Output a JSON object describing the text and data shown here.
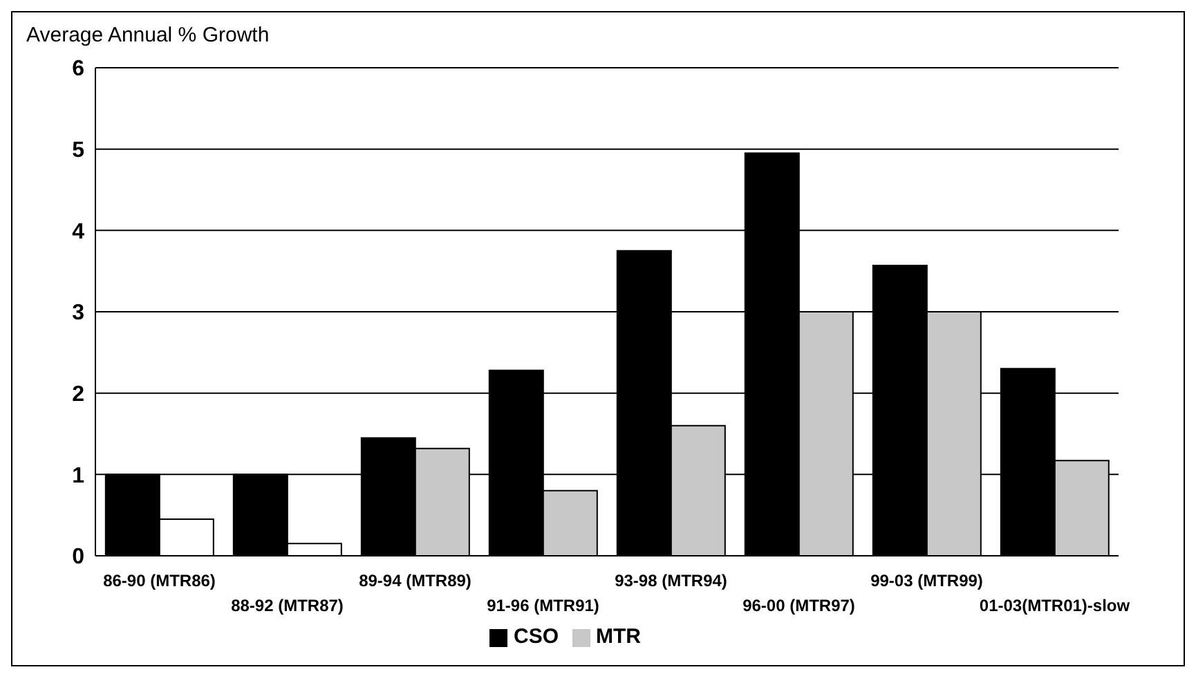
{
  "chart_data": {
    "type": "bar",
    "ylabel": "Average Annual % Growth",
    "categories": [
      "86-90 (MTR86)",
      "88-92 (MTR87)",
      "89-94 (MTR89)",
      "91-96 (MTR91)",
      "93-98 (MTR94)",
      "96-00 (MTR97)",
      "99-03 (MTR99)",
      "01-03(MTR01)-slow"
    ],
    "series": [
      {
        "name": "CSO",
        "color": "#000000",
        "values": [
          1.0,
          1.0,
          1.45,
          2.28,
          3.75,
          4.95,
          3.57,
          2.3
        ]
      },
      {
        "name": "MTR",
        "color": "#c8c8c8",
        "colors": [
          "#ffffff",
          "#ffffff",
          "#c8c8c8",
          "#c8c8c8",
          "#c8c8c8",
          "#c8c8c8",
          "#c8c8c8",
          "#c8c8c8"
        ],
        "values": [
          0.45,
          0.15,
          1.32,
          0.8,
          1.6,
          3.0,
          3.0,
          1.17
        ]
      }
    ],
    "ylim": [
      0,
      6
    ],
    "yticks": [
      0,
      1,
      2,
      3,
      4,
      5,
      6
    ],
    "grid": "y",
    "legend": "bottom"
  }
}
